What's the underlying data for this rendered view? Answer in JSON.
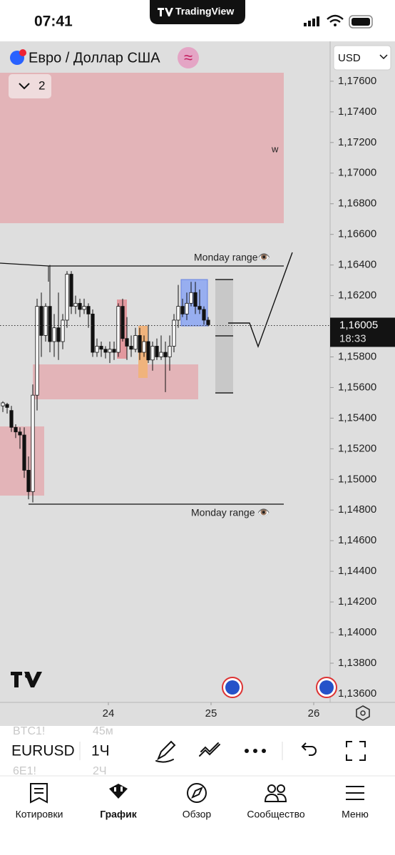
{
  "status_bar": {
    "time": "07:41",
    "app": "TradingView"
  },
  "header": {
    "symbol_title": "Евро / Доллар США",
    "currency": "USD",
    "collapse_count": "2"
  },
  "chart_data": {
    "type": "candlestick",
    "x": [
      22.9722,
      23.0139,
      23.0556,
      23.0972,
      23.1389,
      23.1806,
      23.2222,
      23.2639,
      23.3056,
      23.3472,
      23.3889,
      23.4306,
      23.4722,
      23.5139,
      23.5556,
      23.5972,
      23.6389,
      23.6806,
      23.7222,
      23.7639,
      23.8056,
      23.8472,
      23.8889,
      23.9306,
      23.9722,
      24.0139,
      24.0556,
      24.0972,
      24.1389,
      24.1806,
      24.2222,
      24.2639,
      24.3056,
      24.3472,
      24.3889,
      24.4306,
      24.4722,
      24.5139,
      24.5556,
      24.5972,
      24.6389,
      24.6806,
      24.7222,
      24.7639,
      24.8056,
      24.8472,
      24.8889,
      24.9306,
      24.9722
    ],
    "open": [
      1.1548,
      1.1549,
      1.1545,
      1.1534,
      1.1531,
      1.1529,
      1.1506,
      1.1492,
      1.1555,
      1.1613,
      1.1594,
      1.1613,
      1.159,
      1.1599,
      1.159,
      1.1604,
      1.1634,
      1.1613,
      1.1615,
      1.1611,
      1.1613,
      1.1608,
      1.1583,
      1.1587,
      1.1585,
      1.1583,
      1.1585,
      1.1583,
      1.1613,
      1.1592,
      1.1587,
      1.1585,
      1.1594,
      1.1583,
      1.159,
      1.1578,
      1.1587,
      1.158,
      1.1583,
      1.158,
      1.1587,
      1.1604,
      1.1613,
      1.1608,
      1.1615,
      1.1622,
      1.1613,
      1.1611,
      1.1604
    ],
    "high": [
      1.1551,
      1.155,
      1.1548,
      1.1536,
      1.1534,
      1.1534,
      1.1515,
      1.1562,
      1.1618,
      1.1622,
      1.1615,
      1.164,
      1.1608,
      1.1622,
      1.1608,
      1.1636,
      1.1636,
      1.162,
      1.1618,
      1.1618,
      1.1615,
      1.1611,
      1.1592,
      1.159,
      1.1587,
      1.159,
      1.159,
      1.1615,
      1.1618,
      1.1606,
      1.1594,
      1.1599,
      1.1599,
      1.1594,
      1.1601,
      1.159,
      1.1592,
      1.1594,
      1.159,
      1.1594,
      1.1608,
      1.1627,
      1.1618,
      1.1622,
      1.1629,
      1.1629,
      1.1624,
      1.1613,
      1.1606
    ],
    "low": [
      1.1544,
      1.1543,
      1.1531,
      1.1527,
      1.152,
      1.1501,
      1.1487,
      1.1485,
      1.1545,
      1.158,
      1.159,
      1.1583,
      1.158,
      1.1578,
      1.1585,
      1.1599,
      1.1608,
      1.1608,
      1.1606,
      1.1608,
      1.1599,
      1.158,
      1.158,
      1.158,
      1.1579,
      1.1576,
      1.1578,
      1.158,
      1.159,
      1.1578,
      1.158,
      1.1583,
      1.1578,
      1.158,
      1.1576,
      1.1571,
      1.1578,
      1.1578,
      1.1557,
      1.1571,
      1.1583,
      1.1599,
      1.1606,
      1.1604,
      1.1613,
      1.1608,
      1.1608,
      1.1601,
      1.16
    ],
    "close": [
      1.155,
      1.1547,
      1.1534,
      1.1531,
      1.1529,
      1.1506,
      1.1492,
      1.1555,
      1.1613,
      1.1594,
      1.1613,
      1.159,
      1.1599,
      1.159,
      1.1604,
      1.1634,
      1.1613,
      1.1615,
      1.1611,
      1.1613,
      1.1608,
      1.1583,
      1.1587,
      1.1585,
      1.1583,
      1.1585,
      1.1583,
      1.1613,
      1.1592,
      1.1587,
      1.1585,
      1.1594,
      1.1583,
      1.159,
      1.1578,
      1.1587,
      1.158,
      1.1583,
      1.158,
      1.1587,
      1.1604,
      1.1613,
      1.1608,
      1.1615,
      1.1622,
      1.1613,
      1.1611,
      1.1604,
      1.1601
    ],
    "xlim": [
      22.9444,
      26.1528
    ],
    "xticks": [
      24,
      25,
      26
    ],
    "ylim": [
      1.13544,
      1.17851
    ],
    "yticks": [
      {
        "value": 1.176,
        "label": "1,17600"
      },
      {
        "value": 1.174,
        "label": "1,17400"
      },
      {
        "value": 1.172,
        "label": "1,17200"
      },
      {
        "value": 1.17,
        "label": "1,17000"
      },
      {
        "value": 1.168,
        "label": "1,16800"
      },
      {
        "value": 1.166,
        "label": "1,16600"
      },
      {
        "value": 1.164,
        "label": "1,16400"
      },
      {
        "value": 1.162,
        "label": "1,16200"
      },
      {
        "value": 1.16,
        "label": "1,16000"
      },
      {
        "value": 1.158,
        "label": "1,15800"
      },
      {
        "value": 1.156,
        "label": "1,15600"
      },
      {
        "value": 1.154,
        "label": "1,15400"
      },
      {
        "value": 1.152,
        "label": "1,15200"
      },
      {
        "value": 1.15,
        "label": "1,15000"
      },
      {
        "value": 1.148,
        "label": "1,14800"
      },
      {
        "value": 1.146,
        "label": "1,14600"
      },
      {
        "value": 1.144,
        "label": "1,14400"
      },
      {
        "value": 1.142,
        "label": "1,14200"
      },
      {
        "value": 1.14,
        "label": "1,14000"
      },
      {
        "value": 1.138,
        "label": "1,13800"
      },
      {
        "value": 1.136,
        "label": "1,13600"
      }
    ],
    "last_price": {
      "value": 1.16005,
      "label": "1,16005"
    },
    "countdown": "18:33",
    "annotations": [
      "w",
      "Monday range👁️",
      "Monday range 👁️"
    ]
  },
  "toolbar": {
    "symbol": "EURUSD",
    "interval": "1Ч",
    "faded_top": [
      "BTC1!",
      "45м"
    ],
    "faded_bottom": [
      "6E1!",
      "2Ч"
    ]
  },
  "nav": [
    "Котировки",
    "График",
    "Обзор",
    "Сообщество",
    "Меню"
  ]
}
